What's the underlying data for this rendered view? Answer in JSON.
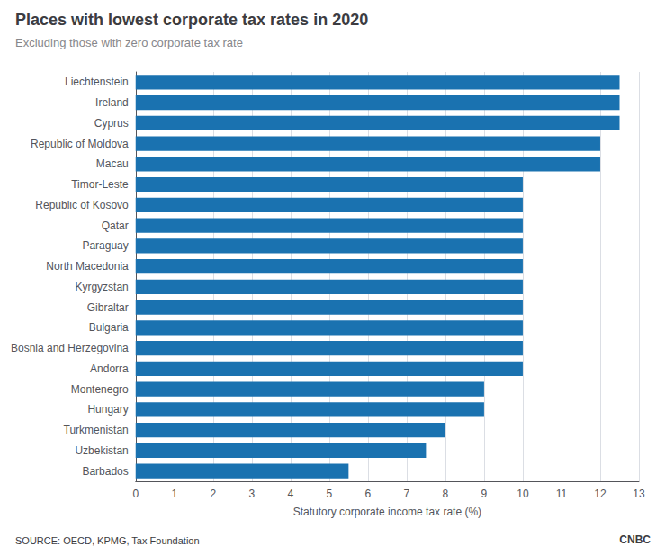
{
  "chart_data": {
    "type": "bar",
    "orientation": "horizontal",
    "title": "Places with lowest corporate tax rates in 2020",
    "subtitle": "Excluding those with zero corporate tax rate",
    "xlabel": "Statutory corporate income tax rate (%)",
    "source": "SOURCE: OECD, KPMG, Tax Foundation",
    "annotations": [
      "CNBC"
    ],
    "categories": [
      "Liechtenstein",
      "Ireland",
      "Cyprus",
      "Republic of Moldova",
      "Macau",
      "Timor-Leste",
      "Republic of Kosovo",
      "Qatar",
      "Paraguay",
      "North Macedonia",
      "Kyrgyzstan",
      "Gibraltar",
      "Bulgaria",
      "Bosnia and Herzegovina",
      "Andorra",
      "Montenegro",
      "Hungary",
      "Turkmenistan",
      "Uzbekistan",
      "Barbados"
    ],
    "values": [
      12.5,
      12.5,
      12.5,
      12.0,
      12.0,
      10.0,
      10.0,
      10.0,
      10.0,
      10.0,
      10.0,
      10.0,
      10.0,
      10.0,
      10.0,
      9.0,
      9.0,
      8.0,
      7.5,
      5.5
    ],
    "color": "#1a72b0",
    "xlim": [
      0,
      13
    ],
    "xticks": [
      0,
      1,
      2,
      3,
      4,
      5,
      6,
      7,
      8,
      9,
      10,
      11,
      12,
      13
    ],
    "grid": true
  }
}
